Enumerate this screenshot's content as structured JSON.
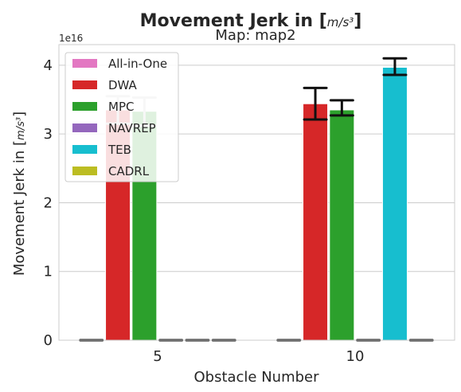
{
  "chart_data": {
    "type": "bar",
    "title": "Movement Jerk in [m/s³]",
    "subtitle": "Map: map2",
    "xlabel": "Obstacle Number",
    "ylabel": "Movement Jerk in [m/s³]",
    "y_offset_label": "1e16",
    "y_scale": 1e+16,
    "ylim": [
      0,
      4.3
    ],
    "yticks": [
      0,
      1,
      2,
      3,
      4
    ],
    "categories": [
      "5",
      "10"
    ],
    "grid": true,
    "legend_position": "top-left",
    "series": [
      {
        "name": "All-in-One",
        "color": "#e377c2",
        "values": [
          0,
          0
        ],
        "err_low": [
          null,
          null
        ],
        "err_high": [
          null,
          null
        ]
      },
      {
        "name": "DWA",
        "color": "#d62728",
        "values": [
          3.35,
          3.44
        ],
        "err_low": [
          3.15,
          3.21
        ],
        "err_high": [
          3.55,
          3.67
        ]
      },
      {
        "name": "MPC",
        "color": "#2ca02c",
        "values": [
          3.33,
          3.35
        ],
        "err_low": [
          3.12,
          3.27
        ],
        "err_high": [
          3.53,
          3.49
        ]
      },
      {
        "name": "NAVREP",
        "color": "#9467bd",
        "values": [
          0,
          0
        ],
        "err_low": [
          null,
          null
        ],
        "err_high": [
          null,
          null
        ]
      },
      {
        "name": "TEB",
        "color": "#17becf",
        "values": [
          0,
          3.97
        ],
        "err_low": [
          null,
          3.86
        ],
        "err_high": [
          null,
          4.1
        ]
      },
      {
        "name": "CADRL",
        "color": "#bcbd22",
        "values": [
          0,
          0
        ],
        "err_low": [
          null,
          null
        ],
        "err_high": [
          null,
          null
        ]
      }
    ]
  }
}
